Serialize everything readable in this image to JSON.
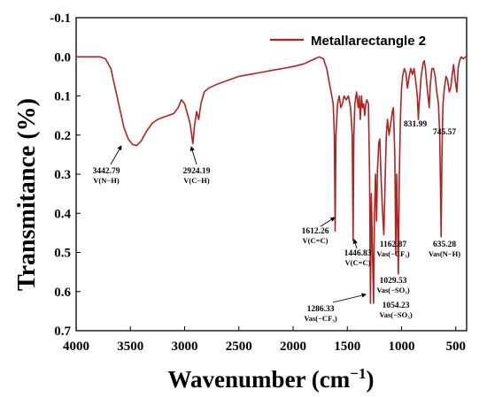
{
  "chart_data": {
    "type": "line",
    "xlabel": "Wavenumber (cm",
    "xlabel_sup": "−1",
    "xlabel_close": ")",
    "ylabel": "Transmitance (%)",
    "xlim": [
      4000,
      400
    ],
    "ylim": [
      -0.1,
      0.7
    ],
    "x_ticks": [
      "4000",
      "3500",
      "3000",
      "2500",
      "2000",
      "1500",
      "1000",
      "500"
    ],
    "y_ticks": [
      "-0.1",
      "0.0",
      "0.1",
      "0.2",
      "0.3",
      "0.4",
      "0.5",
      "0.6",
      "0.7"
    ],
    "series": [
      {
        "name": "Metallarectangle 2",
        "color": "#b22222",
        "points": [
          [
            4000,
            0.0
          ],
          [
            3780,
            0.0
          ],
          [
            3730,
            0.005
          ],
          [
            3680,
            0.03
          ],
          [
            3640,
            0.08
          ],
          [
            3600,
            0.13
          ],
          [
            3560,
            0.18
          ],
          [
            3520,
            0.21
          ],
          [
            3480,
            0.224
          ],
          [
            3442.79,
            0.227
          ],
          [
            3400,
            0.215
          ],
          [
            3350,
            0.19
          ],
          [
            3300,
            0.17
          ],
          [
            3250,
            0.16
          ],
          [
            3200,
            0.155
          ],
          [
            3150,
            0.15
          ],
          [
            3100,
            0.145
          ],
          [
            3060,
            0.13
          ],
          [
            3030,
            0.11
          ],
          [
            3000,
            0.12
          ],
          [
            2970,
            0.15
          ],
          [
            2950,
            0.17
          ],
          [
            2935,
            0.2
          ],
          [
            2924.19,
            0.222
          ],
          [
            2910,
            0.18
          ],
          [
            2890,
            0.14
          ],
          [
            2870,
            0.16
          ],
          [
            2850,
            0.12
          ],
          [
            2820,
            0.09
          ],
          [
            2780,
            0.08
          ],
          [
            2700,
            0.07
          ],
          [
            2600,
            0.06
          ],
          [
            2500,
            0.05
          ],
          [
            2400,
            0.045
          ],
          [
            2300,
            0.04
          ],
          [
            2200,
            0.035
          ],
          [
            2100,
            0.03
          ],
          [
            2000,
            0.025
          ],
          [
            1900,
            0.018
          ],
          [
            1800,
            0.005
          ],
          [
            1760,
            0.0
          ],
          [
            1720,
            0.005
          ],
          [
            1690,
            0.03
          ],
          [
            1670,
            0.06
          ],
          [
            1650,
            0.09
          ],
          [
            1630,
            0.12
          ],
          [
            1620,
            0.2
          ],
          [
            1612.26,
            0.445
          ],
          [
            1605,
            0.2
          ],
          [
            1590,
            0.12
          ],
          [
            1575,
            0.1
          ],
          [
            1560,
            0.13
          ],
          [
            1545,
            0.12
          ],
          [
            1530,
            0.1
          ],
          [
            1510,
            0.11
          ],
          [
            1490,
            0.1
          ],
          [
            1470,
            0.13
          ],
          [
            1455,
            0.2
          ],
          [
            1446.83,
            0.47
          ],
          [
            1440,
            0.2
          ],
          [
            1430,
            0.12
          ],
          [
            1415,
            0.09
          ],
          [
            1400,
            0.13
          ],
          [
            1390,
            0.1
          ],
          [
            1380,
            0.16
          ],
          [
            1370,
            0.1
          ],
          [
            1360,
            0.13
          ],
          [
            1350,
            0.12
          ],
          [
            1340,
            0.15
          ],
          [
            1330,
            0.12
          ],
          [
            1320,
            0.11
          ],
          [
            1305,
            0.12
          ],
          [
            1295,
            0.3
          ],
          [
            1286.33,
            0.63
          ],
          [
            1278,
            0.35
          ],
          [
            1268,
            0.5
          ],
          [
            1258,
            0.63
          ],
          [
            1250,
            0.4
          ],
          [
            1240,
            0.3
          ],
          [
            1230,
            0.42
          ],
          [
            1222,
            0.29
          ],
          [
            1210,
            0.22
          ],
          [
            1200,
            0.21
          ],
          [
            1190,
            0.3
          ],
          [
            1175,
            0.4
          ],
          [
            1162.87,
            0.455
          ],
          [
            1150,
            0.3
          ],
          [
            1140,
            0.2
          ],
          [
            1130,
            0.16
          ],
          [
            1115,
            0.2
          ],
          [
            1100,
            0.17
          ],
          [
            1085,
            0.14
          ],
          [
            1075,
            0.13
          ],
          [
            1062,
            0.25
          ],
          [
            1054.23,
            0.5
          ],
          [
            1045,
            0.3
          ],
          [
            1036,
            0.45
          ],
          [
            1029.53,
            0.555
          ],
          [
            1020,
            0.3
          ],
          [
            1010,
            0.15
          ],
          [
            1000,
            0.08
          ],
          [
            990,
            0.05
          ],
          [
            975,
            0.03
          ],
          [
            960,
            0.04
          ],
          [
            945,
            0.08
          ],
          [
            930,
            0.05
          ],
          [
            915,
            0.03
          ],
          [
            900,
            0.045
          ],
          [
            885,
            0.03
          ],
          [
            870,
            0.06
          ],
          [
            855,
            0.1
          ],
          [
            845,
            0.16
          ],
          [
            838,
            0.12
          ],
          [
            831.99,
            0.1
          ],
          [
            820,
            0.05
          ],
          [
            800,
            0.015
          ],
          [
            790,
            0.01
          ],
          [
            780,
            0.03
          ],
          [
            770,
            0.06
          ],
          [
            760,
            0.09
          ],
          [
            752,
            0.11
          ],
          [
            745.57,
            0.13
          ],
          [
            735,
            0.07
          ],
          [
            720,
            0.03
          ],
          [
            705,
            0.03
          ],
          [
            690,
            0.05
          ],
          [
            675,
            0.09
          ],
          [
            660,
            0.12
          ],
          [
            648,
            0.2
          ],
          [
            640,
            0.35
          ],
          [
            635.28,
            0.46
          ],
          [
            628,
            0.25
          ],
          [
            618,
            0.12
          ],
          [
            605,
            0.08
          ],
          [
            590,
            0.05
          ],
          [
            575,
            0.06
          ],
          [
            560,
            0.09
          ],
          [
            548,
            0.08
          ],
          [
            535,
            0.05
          ],
          [
            520,
            0.02
          ],
          [
            505,
            0.06
          ],
          [
            490,
            0.09
          ],
          [
            478,
            0.03
          ],
          [
            465,
            0.01
          ],
          [
            450,
            0.0
          ],
          [
            430,
            0.005
          ],
          [
            410,
            0.0
          ],
          [
            400,
            0.0
          ]
        ]
      }
    ],
    "annotations": [
      {
        "label": "3442.79",
        "sub": "V(N−H)"
      },
      {
        "label": "2924.19",
        "sub": "V(C−H)"
      },
      {
        "label": "1612.26",
        "sub": "V(C=C)"
      },
      {
        "label": "1446.83",
        "sub": "V(C=C)"
      },
      {
        "label": "1162.87",
        "sub": "Vas(−CF₃)"
      },
      {
        "label": "1029.53",
        "sub": "Vas(−SO₃)"
      },
      {
        "label": "1286.33",
        "sub": "Vas(−CF₃)"
      },
      {
        "label": "1054.23",
        "sub": "Vas(−SO₃)"
      },
      {
        "label": "831.99",
        "sub": ""
      },
      {
        "label": "745.57",
        "sub": ""
      },
      {
        "label": "635.28",
        "sub": "Vas(N−H)"
      }
    ]
  }
}
